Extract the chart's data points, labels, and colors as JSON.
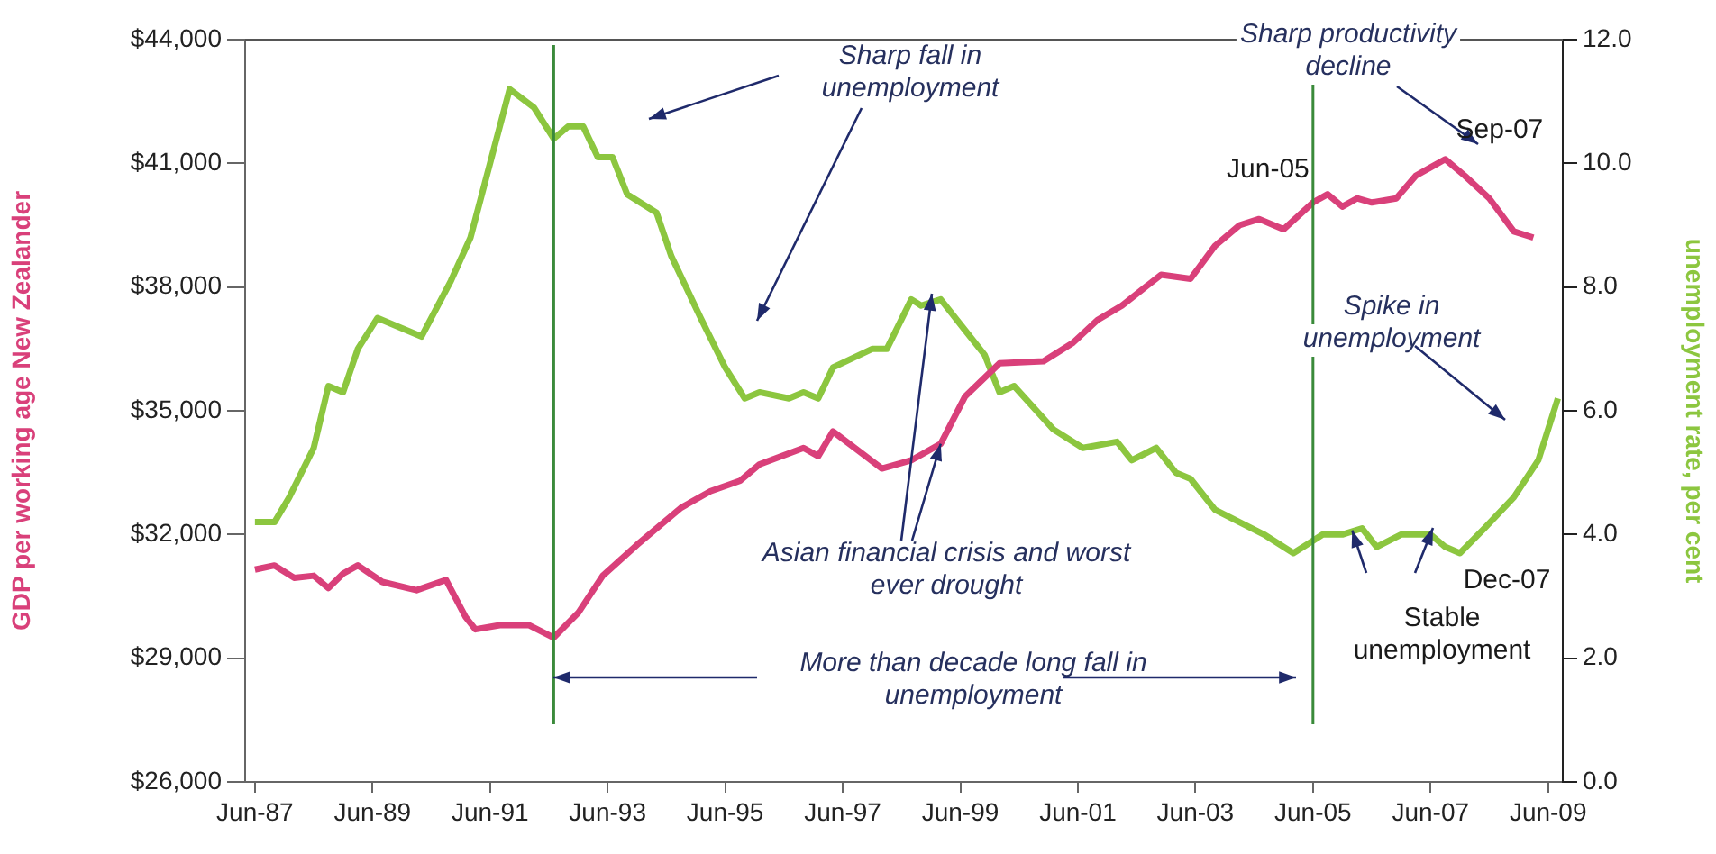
{
  "chart_data": {
    "type": "line",
    "ylabel": "GDP per working age New Zealander",
    "y2label": "unemployment rate, per cent",
    "xlim": [
      "1987-04",
      "2009-09"
    ],
    "xticks": [
      {
        "value": "1987-06",
        "label": "Jun-87"
      },
      {
        "value": "1989-06",
        "label": "Jun-89"
      },
      {
        "value": "1991-06",
        "label": "Jun-91"
      },
      {
        "value": "1993-06",
        "label": "Jun-93"
      },
      {
        "value": "1995-06",
        "label": "Jun-95"
      },
      {
        "value": "1997-06",
        "label": "Jun-97"
      },
      {
        "value": "1999-06",
        "label": "Jun-99"
      },
      {
        "value": "2001-06",
        "label": "Jun-01"
      },
      {
        "value": "2003-06",
        "label": "Jun-03"
      },
      {
        "value": "2005-06",
        "label": "Jun-05"
      },
      {
        "value": "2007-06",
        "label": "Jun-07"
      },
      {
        "value": "2009-06",
        "label": "Jun-09"
      }
    ],
    "ylim": [
      26000,
      44000
    ],
    "yticks": [
      {
        "value": 26000,
        "label": "$26,000"
      },
      {
        "value": 29000,
        "label": "$29,000"
      },
      {
        "value": 32000,
        "label": "$32,000"
      },
      {
        "value": 35000,
        "label": "$35,000"
      },
      {
        "value": 38000,
        "label": "$38,000"
      },
      {
        "value": 41000,
        "label": "$41,000"
      },
      {
        "value": 44000,
        "label": "$44,000"
      }
    ],
    "y2lim": [
      0,
      12
    ],
    "y2ticks": [
      {
        "value": 0,
        "label": "0.0"
      },
      {
        "value": 2,
        "label": "2.0"
      },
      {
        "value": 4,
        "label": "4.0"
      },
      {
        "value": 6,
        "label": "6.0"
      },
      {
        "value": 8,
        "label": "8.0"
      },
      {
        "value": 10,
        "label": "10.0"
      },
      {
        "value": 12,
        "label": "12.0"
      }
    ],
    "series": [
      {
        "color": "#d9407a",
        "x": [
          "1987-06",
          "1987-10",
          "1988-02",
          "1988-06",
          "1988-09",
          "1988-12",
          "1989-03",
          "1989-08",
          "1990-03",
          "1990-09",
          "1991-01",
          "1991-03",
          "1991-08",
          "1992-02",
          "1992-07",
          "1992-12",
          "1993-05",
          "1993-12",
          "1994-09",
          "1995-03",
          "1995-09",
          "1996-01",
          "1996-10",
          "1997-01",
          "1997-04",
          "1998-02",
          "1998-08",
          "1999-02",
          "1999-07",
          "2000-02",
          "2000-11",
          "2001-05",
          "2001-10",
          "2002-03",
          "2002-11",
          "2003-05",
          "2003-10",
          "2004-03",
          "2004-07",
          "2004-12",
          "2005-06",
          "2005-09",
          "2005-12",
          "2006-03",
          "2006-06",
          "2006-11",
          "2007-03",
          "2007-06",
          "2007-09",
          "2008-01",
          "2008-06",
          "2008-11",
          "2009-03"
        ],
        "values": [
          31150,
          31250,
          30950,
          31000,
          30700,
          31050,
          31250,
          30850,
          30650,
          30900,
          30000,
          29700,
          29800,
          29800,
          29500,
          30100,
          31000,
          31750,
          32650,
          33050,
          33300,
          33700,
          34100,
          33900,
          34500,
          33600,
          33800,
          34200,
          35350,
          36150,
          36200,
          36650,
          37200,
          37550,
          38300,
          38200,
          39000,
          39500,
          39650,
          39400,
          40050,
          40250,
          39950,
          40150,
          40050,
          40150,
          40700,
          40900,
          41100,
          40700,
          40150,
          39350,
          39200
        ]
      },
      {
        "color": "#8cc63f",
        "axis": "y2",
        "x": [
          "1987-06",
          "1987-10",
          "1988-01",
          "1988-06",
          "1988-09",
          "1988-12",
          "1989-03",
          "1989-07",
          "1990-04",
          "1990-10",
          "1991-02",
          "1991-05",
          "1991-10",
          "1992-03",
          "1992-07",
          "1992-10",
          "1993-01",
          "1993-04",
          "1993-07",
          "1993-10",
          "1994-04",
          "1994-07",
          "1995-01",
          "1995-06",
          "1995-10",
          "1996-01",
          "1996-07",
          "1996-10",
          "1997-01",
          "1997-04",
          "1997-12",
          "1998-03",
          "1998-08",
          "1998-10",
          "1999-02",
          "1999-07",
          "1999-11",
          "2000-02",
          "2000-05",
          "2001-01",
          "2001-07",
          "2002-02",
          "2002-05",
          "2002-10",
          "2003-02",
          "2003-05",
          "2003-10",
          "2004-03",
          "2004-08",
          "2005-02",
          "2005-06",
          "2005-08",
          "2005-12",
          "2006-04",
          "2006-07",
          "2006-12",
          "2007-06",
          "2007-09",
          "2007-12",
          "2008-05",
          "2008-11",
          "2009-04",
          "2009-08"
        ],
        "values": [
          4.2,
          4.2,
          4.6,
          5.4,
          6.4,
          6.3,
          7.0,
          7.5,
          7.2,
          8.1,
          8.8,
          9.7,
          11.2,
          10.9,
          10.4,
          10.6,
          10.6,
          10.1,
          10.1,
          9.5,
          9.2,
          8.5,
          7.5,
          6.7,
          6.2,
          6.3,
          6.2,
          6.3,
          6.2,
          6.7,
          7.0,
          7.0,
          7.8,
          7.7,
          7.8,
          7.3,
          6.9,
          6.3,
          6.4,
          5.7,
          5.4,
          5.5,
          5.2,
          5.4,
          5.0,
          4.9,
          4.4,
          4.2,
          4.0,
          3.7,
          3.9,
          4.0,
          4.0,
          4.1,
          3.8,
          4.0,
          4.0,
          3.8,
          3.7,
          4.1,
          4.6,
          5.2,
          6.2
        ]
      }
    ],
    "ref_lines": [
      {
        "axis": "x",
        "value": "1992-07",
        "color": "#3a8a3a"
      },
      {
        "axis": "x",
        "value": "2005-06",
        "color": "#3a8a3a"
      }
    ],
    "annotations": [
      "Sharp fall in unemployment",
      "Sharp productivity decline",
      {
        "text": "Jun-05",
        "x": "2005-06",
        "y": 40050
      },
      {
        "text": "Sep-07",
        "x": "2007-09",
        "y": 41100
      },
      "Spike in unemployment",
      {
        "text": "Asian financial crisis and worst ever drought",
        "x": "1999-02",
        "y": 34200
      },
      "More than decade long fall in unemployment",
      {
        "text": "Stable unemployment",
        "x": "2006-02",
        "y": 32100
      },
      "Dec-07"
    ],
    "legend": false
  }
}
